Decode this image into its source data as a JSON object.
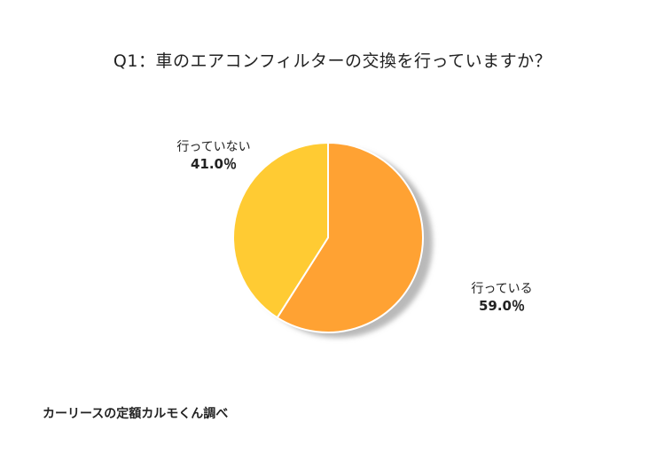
{
  "chart_data": {
    "type": "pie",
    "title": "Q1：車のエアコンフィルターの交換を行っていますか？",
    "slices": [
      {
        "label": "行っている",
        "value": 59.0,
        "value_label": "59.0％",
        "color": "#FFA233"
      },
      {
        "label": "行っていない",
        "value": 41.0,
        "value_label": "41.0％",
        "color": "#FFCB33"
      }
    ],
    "start_angle_deg": 0,
    "direction": "clockwise"
  },
  "footer": {
    "source": "カーリースの定額カルモくん調べ"
  }
}
